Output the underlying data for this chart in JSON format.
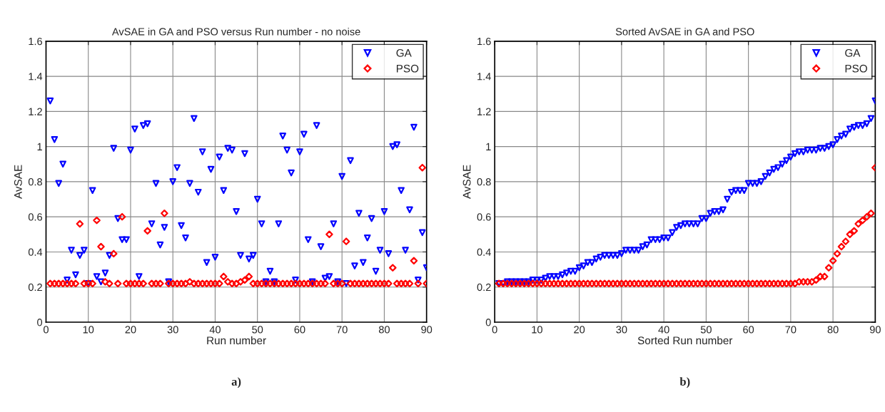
{
  "chart_data": [
    {
      "type": "scatter",
      "title": "AvSAE in GA and PSO versus Run number - no noise",
      "xlabel": "Run number",
      "ylabel": "AvSAE",
      "annotations": [
        "a)"
      ],
      "xlim": [
        0,
        90
      ],
      "xticks": [
        0,
        10,
        20,
        30,
        40,
        50,
        60,
        70,
        80,
        90
      ],
      "ylim": [
        0,
        1.6
      ],
      "yticks": [
        0,
        0.2,
        0.4,
        0.6,
        0.8,
        1,
        1.2,
        1.4,
        1.6
      ],
      "grid": true,
      "legend": "top right",
      "x": [
        1,
        2,
        3,
        4,
        5,
        6,
        7,
        8,
        9,
        10,
        11,
        12,
        13,
        14,
        15,
        16,
        17,
        18,
        19,
        20,
        21,
        22,
        23,
        24,
        25,
        26,
        27,
        28,
        29,
        30,
        31,
        32,
        33,
        34,
        35,
        36,
        37,
        38,
        39,
        40,
        41,
        42,
        43,
        44,
        45,
        46,
        47,
        48,
        49,
        50,
        51,
        52,
        53,
        54,
        55,
        56,
        57,
        58,
        59,
        60,
        61,
        62,
        63,
        64,
        65,
        66,
        67,
        68,
        69,
        70,
        71,
        72,
        73,
        74,
        75,
        76,
        77,
        78,
        79,
        80,
        81,
        82,
        83,
        84,
        85,
        86,
        87,
        88,
        89,
        90
      ],
      "series": [
        {
          "name": "GA",
          "color": "#0000ff",
          "marker": "triangle",
          "values": [
            1.26,
            1.04,
            0.79,
            0.9,
            0.24,
            0.41,
            0.27,
            0.38,
            0.41,
            0.22,
            0.75,
            0.26,
            0.23,
            0.28,
            0.38,
            0.99,
            0.59,
            0.47,
            0.47,
            0.98,
            1.1,
            0.26,
            1.12,
            1.13,
            0.56,
            0.79,
            0.44,
            0.54,
            0.23,
            0.8,
            0.88,
            0.55,
            0.48,
            0.79,
            1.16,
            0.74,
            0.97,
            0.34,
            0.87,
            0.37,
            0.94,
            0.75,
            0.99,
            0.98,
            0.63,
            0.38,
            0.96,
            0.36,
            0.38,
            0.7,
            0.56,
            0.23,
            0.29,
            0.23,
            0.56,
            1.06,
            0.98,
            0.85,
            0.24,
            0.97,
            1.07,
            0.47,
            0.23,
            1.12,
            0.43,
            0.25,
            0.26,
            0.56,
            0.23,
            0.83,
            0.22,
            0.92,
            0.32,
            0.62,
            0.34,
            0.48,
            0.59,
            0.29,
            0.41,
            0.63,
            0.39,
            1.0,
            1.01,
            0.75,
            0.41,
            0.64,
            1.11,
            0.24,
            0.51,
            0.31
          ]
        },
        {
          "name": "PSO",
          "color": "#ff0000",
          "marker": "diamond",
          "values": [
            0.22,
            0.22,
            0.22,
            0.22,
            0.22,
            0.22,
            0.22,
            0.56,
            0.22,
            0.22,
            0.22,
            0.58,
            0.43,
            0.23,
            0.22,
            0.39,
            0.22,
            0.6,
            0.22,
            0.22,
            0.22,
            0.22,
            0.22,
            0.52,
            0.22,
            0.22,
            0.22,
            0.62,
            0.22,
            0.22,
            0.22,
            0.22,
            0.22,
            0.23,
            0.22,
            0.22,
            0.22,
            0.22,
            0.22,
            0.22,
            0.22,
            0.26,
            0.23,
            0.22,
            0.22,
            0.23,
            0.24,
            0.26,
            0.22,
            0.22,
            0.22,
            0.22,
            0.22,
            0.22,
            0.22,
            0.22,
            0.22,
            0.22,
            0.22,
            0.22,
            0.22,
            0.22,
            0.22,
            0.22,
            0.22,
            0.22,
            0.5,
            0.22,
            0.22,
            0.22,
            0.46,
            0.22,
            0.22,
            0.22,
            0.22,
            0.22,
            0.22,
            0.22,
            0.22,
            0.22,
            0.22,
            0.31,
            0.22,
            0.22,
            0.22,
            0.22,
            0.35,
            0.22,
            0.88,
            0.22
          ]
        }
      ]
    },
    {
      "type": "scatter",
      "title": "Sorted AvSAE in GA and PSO",
      "xlabel": "Sorted Run number",
      "ylabel": "AvSAE",
      "annotations": [
        "b)"
      ],
      "xlim": [
        0,
        90
      ],
      "xticks": [
        0,
        10,
        20,
        30,
        40,
        50,
        60,
        70,
        80,
        90
      ],
      "ylim": [
        0,
        1.6
      ],
      "yticks": [
        0,
        0.2,
        0.4,
        0.6,
        0.8,
        1,
        1.2,
        1.4,
        1.6
      ],
      "grid": true,
      "legend": "top right",
      "x": [
        1,
        2,
        3,
        4,
        5,
        6,
        7,
        8,
        9,
        10,
        11,
        12,
        13,
        14,
        15,
        16,
        17,
        18,
        19,
        20,
        21,
        22,
        23,
        24,
        25,
        26,
        27,
        28,
        29,
        30,
        31,
        32,
        33,
        34,
        35,
        36,
        37,
        38,
        39,
        40,
        41,
        42,
        43,
        44,
        45,
        46,
        47,
        48,
        49,
        50,
        51,
        52,
        53,
        54,
        55,
        56,
        57,
        58,
        59,
        60,
        61,
        62,
        63,
        64,
        65,
        66,
        67,
        68,
        69,
        70,
        71,
        72,
        73,
        74,
        75,
        76,
        77,
        78,
        79,
        80,
        81,
        82,
        83,
        84,
        85,
        86,
        87,
        88,
        89,
        90
      ],
      "series": [
        {
          "name": "GA",
          "color": "#0000ff",
          "marker": "triangle",
          "values": [
            0.22,
            0.22,
            0.23,
            0.23,
            0.23,
            0.23,
            0.23,
            0.23,
            0.24,
            0.24,
            0.24,
            0.25,
            0.26,
            0.26,
            0.26,
            0.27,
            0.28,
            0.29,
            0.29,
            0.31,
            0.32,
            0.34,
            0.34,
            0.36,
            0.37,
            0.38,
            0.38,
            0.38,
            0.38,
            0.39,
            0.41,
            0.41,
            0.41,
            0.41,
            0.43,
            0.44,
            0.47,
            0.47,
            0.47,
            0.48,
            0.48,
            0.51,
            0.54,
            0.55,
            0.56,
            0.56,
            0.56,
            0.56,
            0.59,
            0.59,
            0.62,
            0.63,
            0.63,
            0.64,
            0.7,
            0.74,
            0.75,
            0.75,
            0.75,
            0.79,
            0.79,
            0.79,
            0.8,
            0.83,
            0.85,
            0.87,
            0.88,
            0.9,
            0.92,
            0.94,
            0.96,
            0.97,
            0.97,
            0.98,
            0.98,
            0.98,
            0.99,
            0.99,
            1.0,
            1.01,
            1.04,
            1.06,
            1.07,
            1.1,
            1.11,
            1.12,
            1.12,
            1.13,
            1.16,
            1.26
          ]
        },
        {
          "name": "PSO",
          "color": "#ff0000",
          "marker": "diamond",
          "values": [
            0.22,
            0.22,
            0.22,
            0.22,
            0.22,
            0.22,
            0.22,
            0.22,
            0.22,
            0.22,
            0.22,
            0.22,
            0.22,
            0.22,
            0.22,
            0.22,
            0.22,
            0.22,
            0.22,
            0.22,
            0.22,
            0.22,
            0.22,
            0.22,
            0.22,
            0.22,
            0.22,
            0.22,
            0.22,
            0.22,
            0.22,
            0.22,
            0.22,
            0.22,
            0.22,
            0.22,
            0.22,
            0.22,
            0.22,
            0.22,
            0.22,
            0.22,
            0.22,
            0.22,
            0.22,
            0.22,
            0.22,
            0.22,
            0.22,
            0.22,
            0.22,
            0.22,
            0.22,
            0.22,
            0.22,
            0.22,
            0.22,
            0.22,
            0.22,
            0.22,
            0.22,
            0.22,
            0.22,
            0.22,
            0.22,
            0.22,
            0.22,
            0.22,
            0.22,
            0.22,
            0.22,
            0.23,
            0.23,
            0.23,
            0.23,
            0.24,
            0.26,
            0.26,
            0.31,
            0.35,
            0.39,
            0.43,
            0.46,
            0.5,
            0.52,
            0.56,
            0.58,
            0.6,
            0.62,
            0.88
          ]
        }
      ]
    }
  ]
}
